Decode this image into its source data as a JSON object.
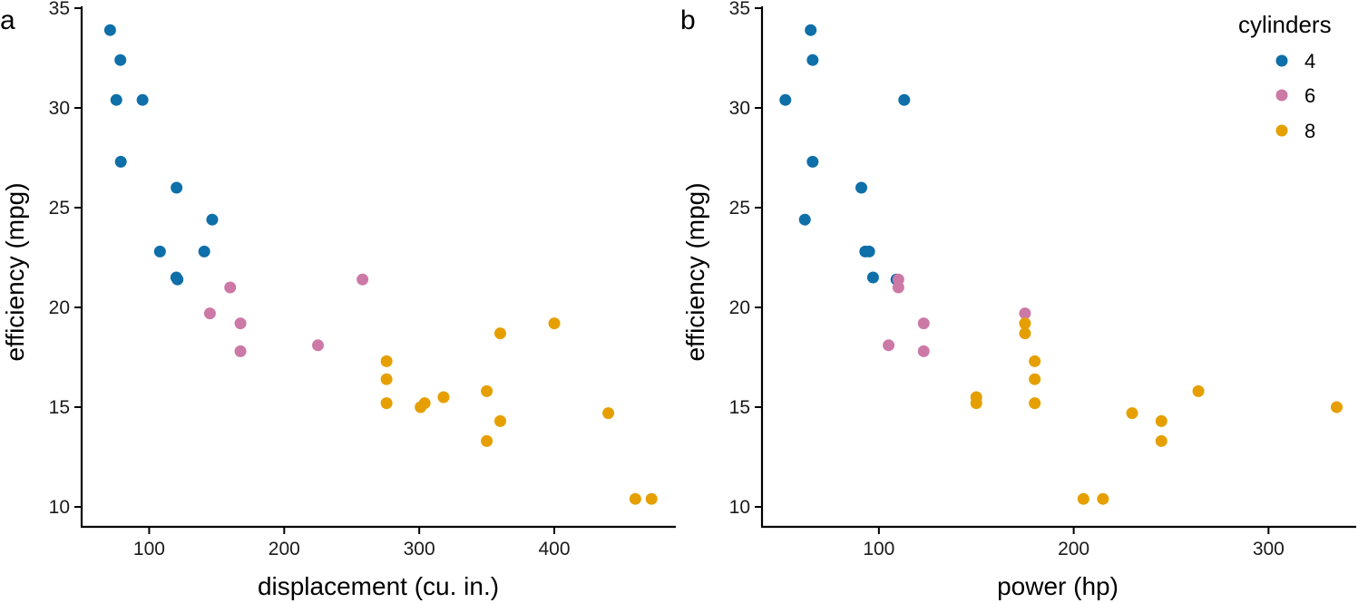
{
  "legend": {
    "title": "cylinders",
    "entries": [
      {
        "label": "4",
        "color": "#0f6fa8"
      },
      {
        "label": "6",
        "color": "#cc79a7"
      },
      {
        "label": "8",
        "color": "#e69f00"
      }
    ]
  },
  "chart_data": [
    {
      "type": "scatter",
      "panel_label": "a",
      "xlabel": "displacement (cu. in.)",
      "ylabel": "efficiency (mpg)",
      "xlim": [
        50,
        490
      ],
      "ylim": [
        9,
        35
      ],
      "xticks": [
        100,
        200,
        300,
        400
      ],
      "yticks": [
        10,
        15,
        20,
        25,
        30,
        35
      ],
      "grid": false,
      "series": [
        {
          "name": "4",
          "color": "#0f6fa8",
          "points": [
            [
              71.1,
              33.9
            ],
            [
              78.7,
              32.4
            ],
            [
              75.7,
              30.4
            ],
            [
              95.1,
              30.4
            ],
            [
              79.0,
              27.3
            ],
            [
              120.3,
              26.0
            ],
            [
              146.7,
              24.4
            ],
            [
              108.0,
              22.8
            ],
            [
              140.8,
              22.8
            ],
            [
              120.1,
              21.5
            ],
            [
              121.0,
              21.4
            ]
          ]
        },
        {
          "name": "6",
          "color": "#cc79a7",
          "points": [
            [
              160.0,
              21.0
            ],
            [
              258.0,
              21.4
            ],
            [
              145.0,
              19.7
            ],
            [
              167.6,
              19.2
            ],
            [
              167.6,
              17.8
            ],
            [
              225.0,
              18.1
            ]
          ]
        },
        {
          "name": "8",
          "color": "#e69f00",
          "points": [
            [
              400.0,
              19.2
            ],
            [
              360.0,
              18.7
            ],
            [
              275.8,
              17.3
            ],
            [
              275.8,
              16.4
            ],
            [
              350.0,
              15.8
            ],
            [
              318.0,
              15.5
            ],
            [
              304.0,
              15.2
            ],
            [
              275.8,
              15.2
            ],
            [
              301.0,
              15.0
            ],
            [
              440.0,
              14.7
            ],
            [
              360.0,
              14.3
            ],
            [
              350.0,
              13.3
            ],
            [
              460.0,
              10.4
            ],
            [
              472.0,
              10.4
            ]
          ]
        }
      ]
    },
    {
      "type": "scatter",
      "panel_label": "b",
      "xlabel": "power (hp)",
      "ylabel": "efficiency (mpg)",
      "xlim": [
        40,
        345
      ],
      "ylim": [
        9,
        35
      ],
      "xticks": [
        100,
        200,
        300
      ],
      "yticks": [
        10,
        15,
        20,
        25,
        30,
        35
      ],
      "grid": false,
      "series": [
        {
          "name": "4",
          "color": "#0f6fa8",
          "points": [
            [
              65,
              33.9
            ],
            [
              66,
              32.4
            ],
            [
              52,
              30.4
            ],
            [
              113,
              30.4
            ],
            [
              66,
              27.3
            ],
            [
              91,
              26.0
            ],
            [
              62,
              24.4
            ],
            [
              93,
              22.8
            ],
            [
              95,
              22.8
            ],
            [
              97,
              21.5
            ],
            [
              109,
              21.4
            ]
          ]
        },
        {
          "name": "6",
          "color": "#cc79a7",
          "points": [
            [
              110,
              21.4
            ],
            [
              110,
              21.0
            ],
            [
              175,
              19.7
            ],
            [
              123,
              19.2
            ],
            [
              105,
              18.1
            ],
            [
              123,
              17.8
            ]
          ]
        },
        {
          "name": "8",
          "color": "#e69f00",
          "points": [
            [
              175,
              19.2
            ],
            [
              175,
              18.7
            ],
            [
              180,
              17.3
            ],
            [
              180,
              16.4
            ],
            [
              264,
              15.8
            ],
            [
              150,
              15.5
            ],
            [
              150,
              15.2
            ],
            [
              180,
              15.2
            ],
            [
              335,
              15.0
            ],
            [
              230,
              14.7
            ],
            [
              245,
              14.3
            ],
            [
              245,
              13.3
            ],
            [
              205,
              10.4
            ],
            [
              215,
              10.4
            ]
          ]
        }
      ]
    }
  ]
}
